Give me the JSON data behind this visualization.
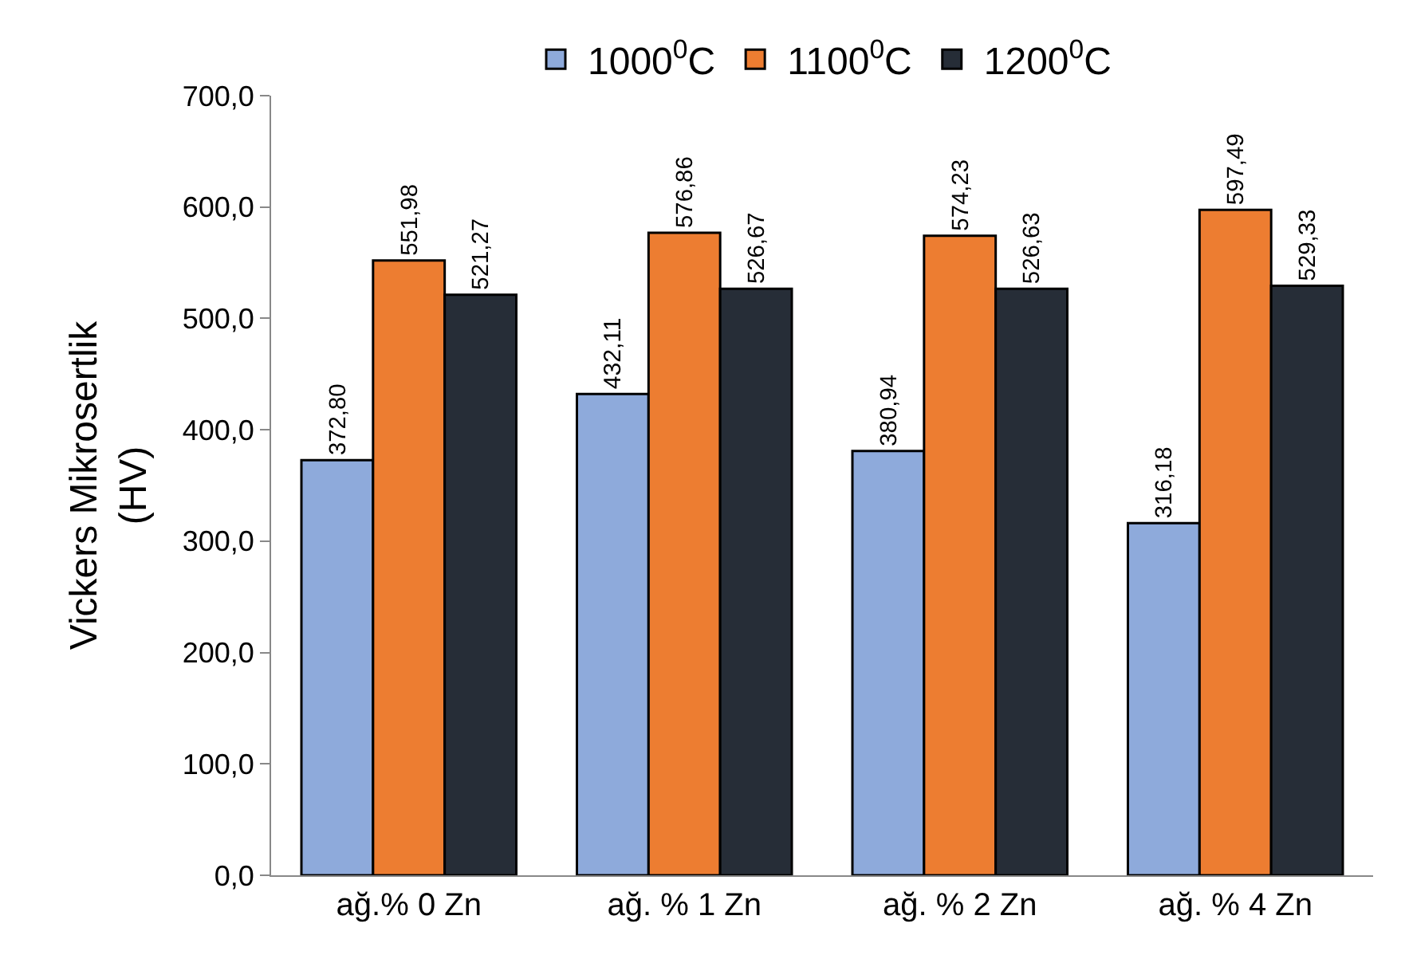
{
  "chart_data": {
    "type": "bar",
    "ylabel": "Vickers Mikrosertlik\n(HV)",
    "categories": [
      "ağ.% 0 Zn",
      "ağ. % 1 Zn",
      "ağ. % 2 Zn",
      "ağ. % 4 Zn"
    ],
    "series": [
      {
        "name": "1000$^{0}$C",
        "color": "#8eaadb",
        "values": [
          372.8,
          432.11,
          380.94,
          316.18
        ],
        "value_labels": [
          "372,80",
          "432,11",
          "380,94",
          "316,18"
        ]
      },
      {
        "name": "1100$^{0}$C",
        "color": "#ed7d31",
        "values": [
          551.98,
          576.86,
          574.23,
          597.49
        ],
        "value_labels": [
          "551,98",
          "576,86",
          "574,23",
          "597,49"
        ]
      },
      {
        "name": "1200$^{0}$C",
        "color": "#262d37",
        "values": [
          521.27,
          526.67,
          526.63,
          529.33
        ],
        "value_labels": [
          "521,27",
          "526,67",
          "526,63",
          "529,33"
        ]
      }
    ],
    "ylim": [
      0,
      700
    ],
    "yticks": [
      {
        "value": 0,
        "label": "0,0"
      },
      {
        "value": 100,
        "label": "100,0"
      },
      {
        "value": 200,
        "label": "200,0"
      },
      {
        "value": 300,
        "label": "300,0"
      },
      {
        "value": 400,
        "label": "400,0"
      },
      {
        "value": 500,
        "label": "500,0"
      },
      {
        "value": 600,
        "label": "600,0"
      },
      {
        "value": 700,
        "label": "700,0"
      }
    ],
    "grid": false,
    "legend": "top"
  }
}
